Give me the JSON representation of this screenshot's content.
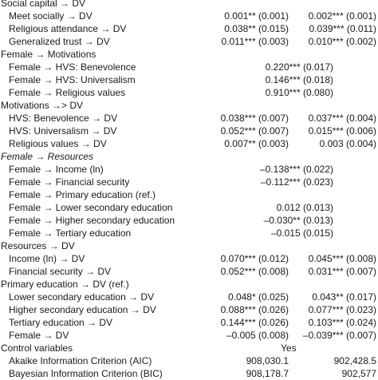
{
  "table": {
    "sections": [
      {
        "title": "Social capital → DV",
        "rows": [
          {
            "label": "Meet socially → DV",
            "c1": "0.001** (0.001)",
            "c2": "0.002*** (0.001)"
          },
          {
            "label": "Religious attendance → DV",
            "c1": "0.038** (0.015)",
            "c2": "0.039*** (0.011)"
          },
          {
            "label": "Generalized trust → DV",
            "c1": "0.011*** (0.003)",
            "c2": "0.010*** (0.002)"
          }
        ]
      },
      {
        "title": "Female → Motivations",
        "rows": [
          {
            "label": "Female → HVS: Benevolence",
            "mid": "0.220*** (0.017)"
          },
          {
            "label": "Female → HVS: Universalism",
            "mid": "0.146*** (0.018)"
          },
          {
            "label": "Female → Religious values",
            "mid": "0.910*** (0.080)"
          }
        ]
      },
      {
        "title": "Motivations →> DV",
        "rows": [
          {
            "label": "HVS: Benevolence → DV",
            "c1": "0.038*** (0.007)",
            "c2": "0.037*** (0.004)"
          },
          {
            "label": "HVS: Universalism → DV",
            "c1": "0.052*** (0.007)",
            "c2": "0.015*** (0.006)"
          },
          {
            "label": "Religious values → DV",
            "c1": "0.007** (0.003)",
            "c2": "0.003 (0.004)"
          }
        ]
      },
      {
        "title": "Female → Resources",
        "italic": true,
        "rows": [
          {
            "label": "Female → Income (ln)",
            "mid": "–0.138*** (0.022)"
          },
          {
            "label": "Female → Financial security",
            "mid": "–0.112*** (0.023)"
          },
          {
            "label": "Female → Primary education (ref.)"
          },
          {
            "label": "Female → Lower secondary education",
            "mid": "0.012 (0.013)"
          },
          {
            "label": "Female → Higher secondary education",
            "mid": "–0.030** (0.013)"
          },
          {
            "label": "Female → Tertiary education",
            "mid": "–0.015 (0.015)"
          }
        ]
      },
      {
        "title": "Resources → DV",
        "rows": [
          {
            "label": "Income (ln) → DV",
            "c1": "0.070*** (0.012)",
            "c2": "0.045*** (0.008)"
          },
          {
            "label": "Financial security → DV",
            "c1": "0.052*** (0.008)",
            "c2": "0.031*** (0.007)"
          }
        ]
      },
      {
        "title": "Primary education → DV (ref.)",
        "rows": [
          {
            "label": "Lower secondary education → DV",
            "c1": "0.048* (0.025)",
            "c2": "0.043** (0.017)"
          },
          {
            "label": "Higher secondary education → DV",
            "c1": "0.088*** (0.026)",
            "c2": "0.077*** (0.023)"
          },
          {
            "label": "Tertiary education → DV",
            "c1": "0.144*** (0.026)",
            "c2": "0.103*** (0.024)"
          },
          {
            "label": "Female → DV",
            "c1": "–0.005 (0.008)",
            "c2": "–0.039*** (0.007)"
          }
        ]
      },
      {
        "title": "Control variables",
        "mid": "Yes",
        "rows": [
          {
            "label": "Akaike Information Criterion (AIC)",
            "c1": "908,030.1",
            "c2": "902,428.5"
          },
          {
            "label": "Bayesian Information Criterion (BIC)",
            "c1": "908,178.7",
            "c2": "902,577"
          }
        ]
      }
    ]
  }
}
